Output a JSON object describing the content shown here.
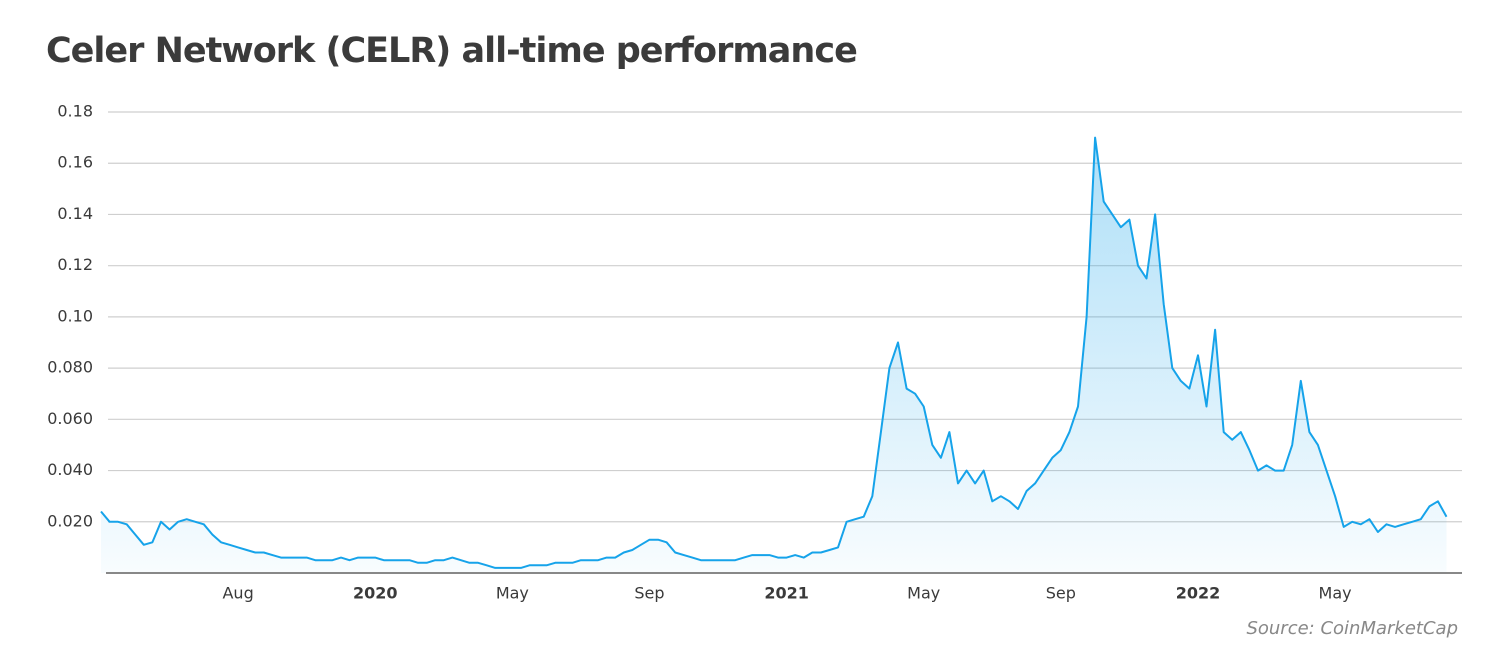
{
  "chart_data": {
    "type": "area-line",
    "title": "Celer Network (CELR) all-time performance",
    "source": "Source: CoinMarketCap",
    "categories": [
      null,
      null,
      null,
      null,
      null,
      null,
      null,
      null,
      null,
      null,
      null,
      null,
      null,
      null,
      null,
      null,
      "Aug",
      null,
      null,
      null,
      null,
      null,
      null,
      null,
      null,
      null,
      null,
      null,
      null,
      null,
      null,
      null,
      "2020",
      null,
      null,
      null,
      null,
      null,
      null,
      null,
      null,
      null,
      null,
      null,
      null,
      null,
      null,
      null,
      "May",
      null,
      null,
      null,
      null,
      null,
      null,
      null,
      null,
      null,
      null,
      null,
      null,
      null,
      null,
      null,
      "Sep",
      null,
      null,
      null,
      null,
      null,
      null,
      null,
      null,
      null,
      null,
      null,
      null,
      null,
      null,
      null,
      "2021",
      null,
      null,
      null,
      null,
      null,
      null,
      null,
      null,
      null,
      null,
      null,
      null,
      null,
      null,
      null,
      "May",
      null,
      null,
      null,
      null,
      null,
      null,
      null,
      null,
      null,
      null,
      null,
      null,
      null,
      null,
      null,
      "Sep",
      null,
      null,
      null,
      null,
      null,
      null,
      null,
      null,
      null,
      null,
      null,
      null,
      null,
      null,
      null,
      "2022",
      null,
      null,
      null,
      null,
      null,
      null,
      null,
      null,
      null,
      null,
      null,
      null,
      null,
      null,
      null,
      "May",
      null,
      null,
      null,
      null,
      null,
      null,
      null,
      null,
      null,
      null,
      null,
      null,
      null
    ],
    "values": [
      0.024,
      0.02,
      0.02,
      0.019,
      0.015,
      0.011,
      0.012,
      0.02,
      0.017,
      0.02,
      0.021,
      0.02,
      0.019,
      0.015,
      0.012,
      0.011,
      0.01,
      0.009,
      0.008,
      0.008,
      0.007,
      0.006,
      0.006,
      0.006,
      0.006,
      0.005,
      0.005,
      0.005,
      0.006,
      0.005,
      0.006,
      0.006,
      0.006,
      0.005,
      0.005,
      0.005,
      0.005,
      0.004,
      0.004,
      0.005,
      0.005,
      0.006,
      0.005,
      0.004,
      0.004,
      0.003,
      0.002,
      0.002,
      0.002,
      0.002,
      0.003,
      0.003,
      0.003,
      0.004,
      0.004,
      0.004,
      0.005,
      0.005,
      0.005,
      0.006,
      0.006,
      0.008,
      0.009,
      0.011,
      0.013,
      0.013,
      0.012,
      0.008,
      0.007,
      0.006,
      0.005,
      0.005,
      0.005,
      0.005,
      0.005,
      0.006,
      0.007,
      0.007,
      0.007,
      0.006,
      0.006,
      0.007,
      0.006,
      0.008,
      0.008,
      0.009,
      0.01,
      0.02,
      0.021,
      0.022,
      0.03,
      0.055,
      0.08,
      0.09,
      0.072,
      0.07,
      0.065,
      0.05,
      0.045,
      0.055,
      0.035,
      0.04,
      0.035,
      0.04,
      0.028,
      0.03,
      0.028,
      0.025,
      0.032,
      0.035,
      0.04,
      0.045,
      0.048,
      0.055,
      0.065,
      0.1,
      0.17,
      0.145,
      0.14,
      0.135,
      0.138,
      0.12,
      0.115,
      0.14,
      0.105,
      0.08,
      0.075,
      0.072,
      0.085,
      0.065,
      0.095,
      0.055,
      0.052,
      0.055,
      0.048,
      0.04,
      0.042,
      0.04,
      0.04,
      0.05,
      0.075,
      0.055,
      0.05,
      0.04,
      0.03,
      0.018,
      0.02,
      0.019,
      0.021,
      0.016,
      0.019,
      0.018,
      0.019,
      0.02,
      0.021,
      0.026,
      0.028,
      0.022
    ],
    "color": "#16a3ea",
    "ylim": [
      0,
      0.18
    ],
    "yticks": [
      {
        "value": 0.02,
        "label": "0.020"
      },
      {
        "value": 0.04,
        "label": "0.040"
      },
      {
        "value": 0.06,
        "label": "0.060"
      },
      {
        "value": 0.08,
        "label": "0.080"
      },
      {
        "value": 0.1,
        "label": "0.10"
      },
      0.12,
      0.14,
      0.16,
      0.18
    ],
    "grid": true
  }
}
